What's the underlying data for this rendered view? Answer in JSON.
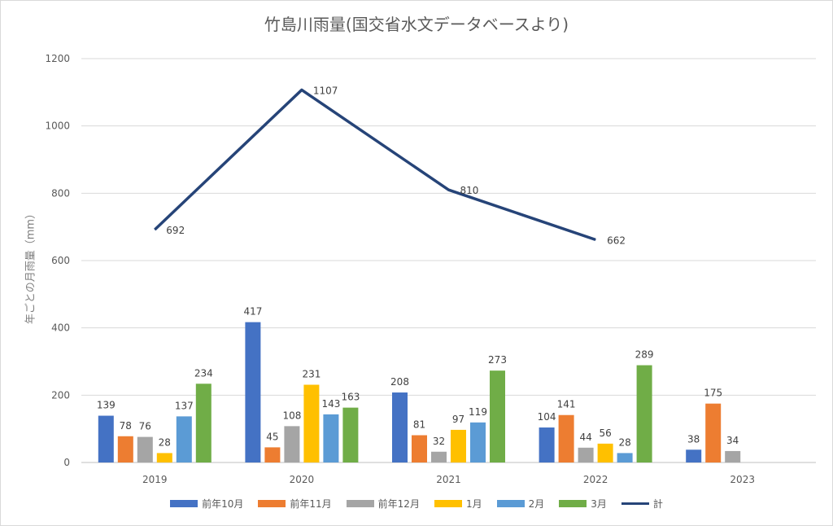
{
  "chart_data": {
    "type": "bar",
    "title": "竹島川雨量(国交省水文データベースより)",
    "ylabel": "年ごとの月雨量（mm）",
    "xlabel": "",
    "ylim": [
      0,
      1200
    ],
    "yticks": [
      0,
      200,
      400,
      600,
      800,
      1000,
      1200
    ],
    "categories": [
      "2019",
      "2020",
      "2021",
      "2022",
      "2023"
    ],
    "series": [
      {
        "name": "前年10月",
        "color": "#4472C4",
        "values": [
          139,
          417,
          208,
          104,
          38
        ]
      },
      {
        "name": "前年11月",
        "color": "#ED7D31",
        "values": [
          78,
          45,
          81,
          141,
          175
        ]
      },
      {
        "name": "前年12月",
        "color": "#A5A5A5",
        "values": [
          76,
          108,
          32,
          44,
          34
        ]
      },
      {
        "name": "1月",
        "color": "#FFC000",
        "values": [
          28,
          231,
          97,
          56,
          null
        ]
      },
      {
        "name": "2月",
        "color": "#5B9BD5",
        "values": [
          137,
          143,
          119,
          28,
          null
        ]
      },
      {
        "name": "3月",
        "color": "#70AD47",
        "values": [
          234,
          163,
          273,
          289,
          null
        ]
      }
    ],
    "line_series": {
      "name": "計",
      "color": "#264478",
      "values": [
        692,
        1107,
        810,
        662,
        null
      ]
    },
    "grid": true,
    "legend_position": "bottom"
  }
}
